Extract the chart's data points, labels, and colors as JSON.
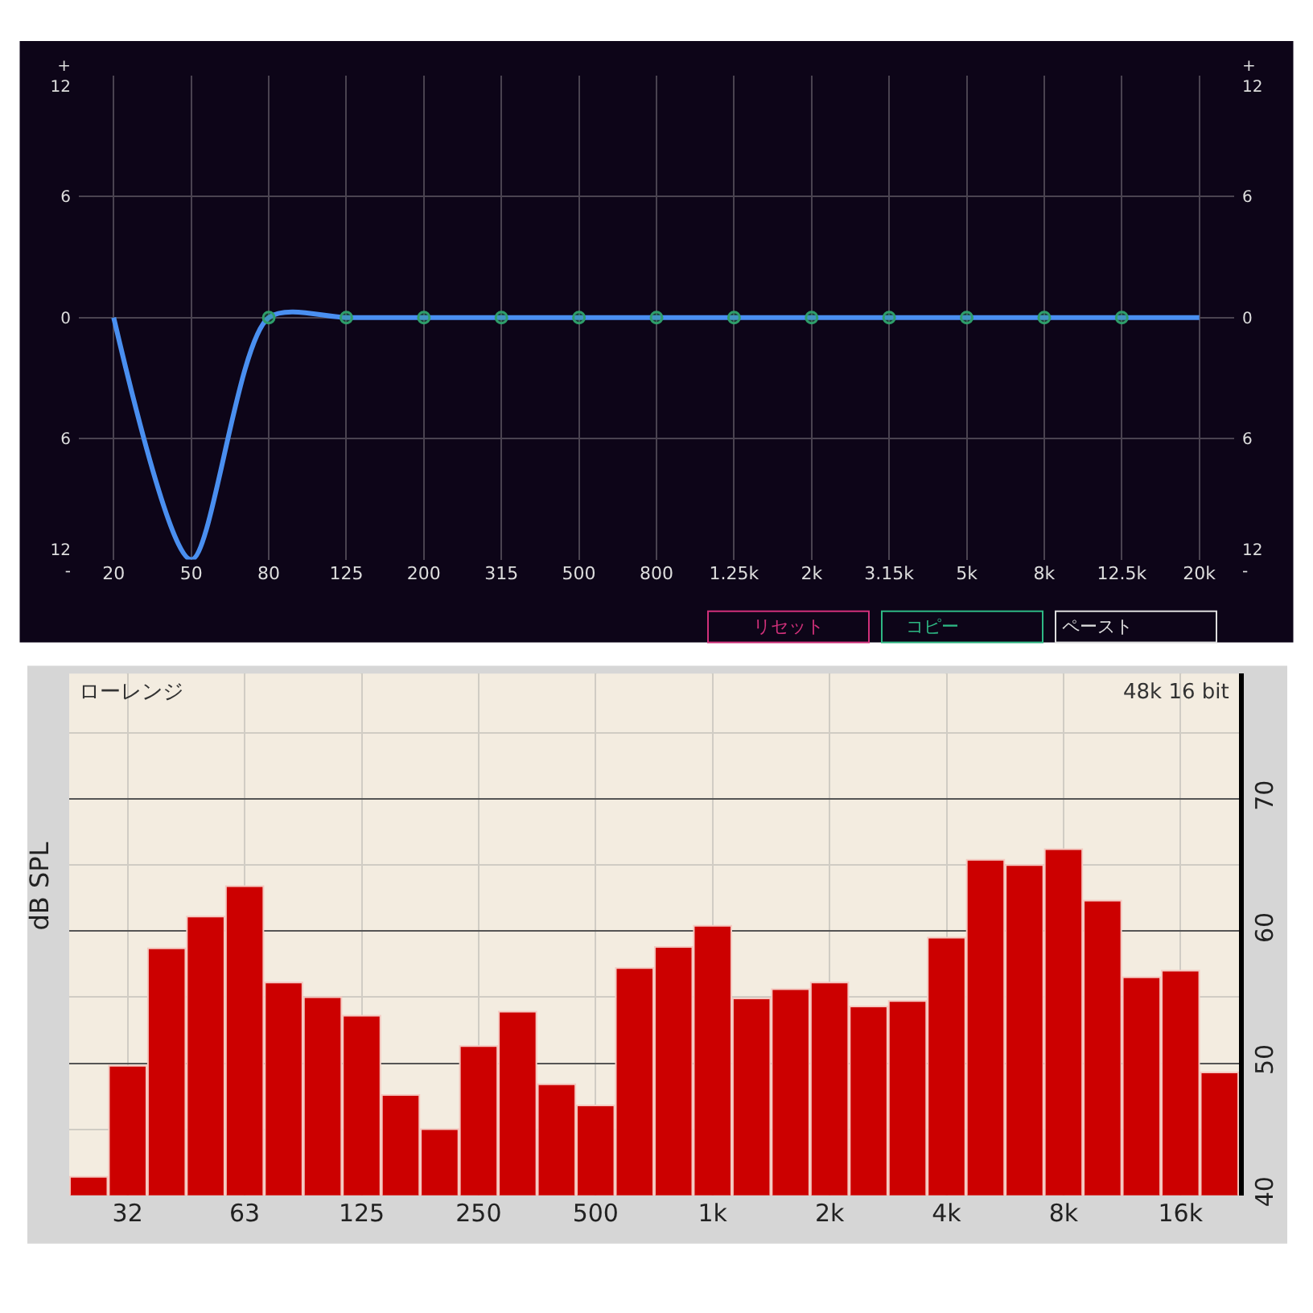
{
  "chart_data": [
    {
      "type": "line",
      "categories": [
        "20",
        "50",
        "80",
        "125",
        "200",
        "315",
        "500",
        "800",
        "1.25k",
        "2k",
        "3.15k",
        "5k",
        "8k",
        "12.5k",
        "20k"
      ],
      "series": [
        {
          "type": "line",
          "color": "#4a8ff0",
          "marker": "none",
          "values": [
            0,
            -12,
            0,
            0,
            0,
            0,
            0,
            0,
            0,
            0,
            0,
            0,
            0,
            0,
            0
          ]
        },
        {
          "type": "scatter",
          "color": "#2e9e6a",
          "marker": "circle",
          "x": [
            "80",
            "125",
            "200",
            "315",
            "500",
            "800",
            "1.25k",
            "2k",
            "3.15k",
            "5k",
            "8k",
            "12.5k"
          ],
          "values": [
            0,
            0,
            0,
            0,
            0,
            0,
            0,
            0,
            0,
            0,
            0,
            0
          ]
        }
      ],
      "ylim": [
        -12,
        12
      ],
      "yticks": [
        {
          "value": 12,
          "label": "+\n12"
        },
        6,
        0,
        {
          "value": -6,
          "label": "6"
        },
        {
          "value": -12,
          "label": "12\n-"
        }
      ],
      "y2lim": [
        -12,
        12
      ],
      "y2ticks": [
        {
          "value": 12,
          "label": "+\n12"
        },
        6,
        0,
        {
          "value": -6,
          "label": "6"
        },
        {
          "value": -12,
          "label": "12\n-"
        }
      ],
      "grid": true,
      "annotations": [
        "リセット",
        "コピー",
        "ペースト"
      ]
    },
    {
      "type": "bar",
      "categories": [
        null,
        "32",
        null,
        null,
        "63",
        null,
        null,
        "125",
        null,
        null,
        "250",
        null,
        null,
        "500",
        null,
        null,
        "1k",
        null,
        null,
        "2k",
        null,
        null,
        "4k",
        null,
        null,
        "8k",
        null,
        null,
        "16k",
        null
      ],
      "values": [
        41.4,
        49.8,
        58.7,
        61.1,
        63.4,
        56.1,
        55.0,
        53.6,
        47.6,
        45.0,
        51.3,
        53.9,
        48.4,
        46.8,
        57.2,
        58.8,
        60.4,
        54.9,
        55.6,
        56.1,
        54.3,
        54.7,
        59.5,
        65.4,
        65.0,
        66.2,
        62.3,
        56.5,
        57.0,
        49.3
      ],
      "color": "#cc0000",
      "ylim": [
        40,
        79.5
      ],
      "yticks": [
        40,
        50,
        60,
        70
      ],
      "ylabel": "dB SPL",
      "grid": true,
      "annotations": [
        "ローレンジ",
        "48k 16 bit"
      ]
    }
  ]
}
